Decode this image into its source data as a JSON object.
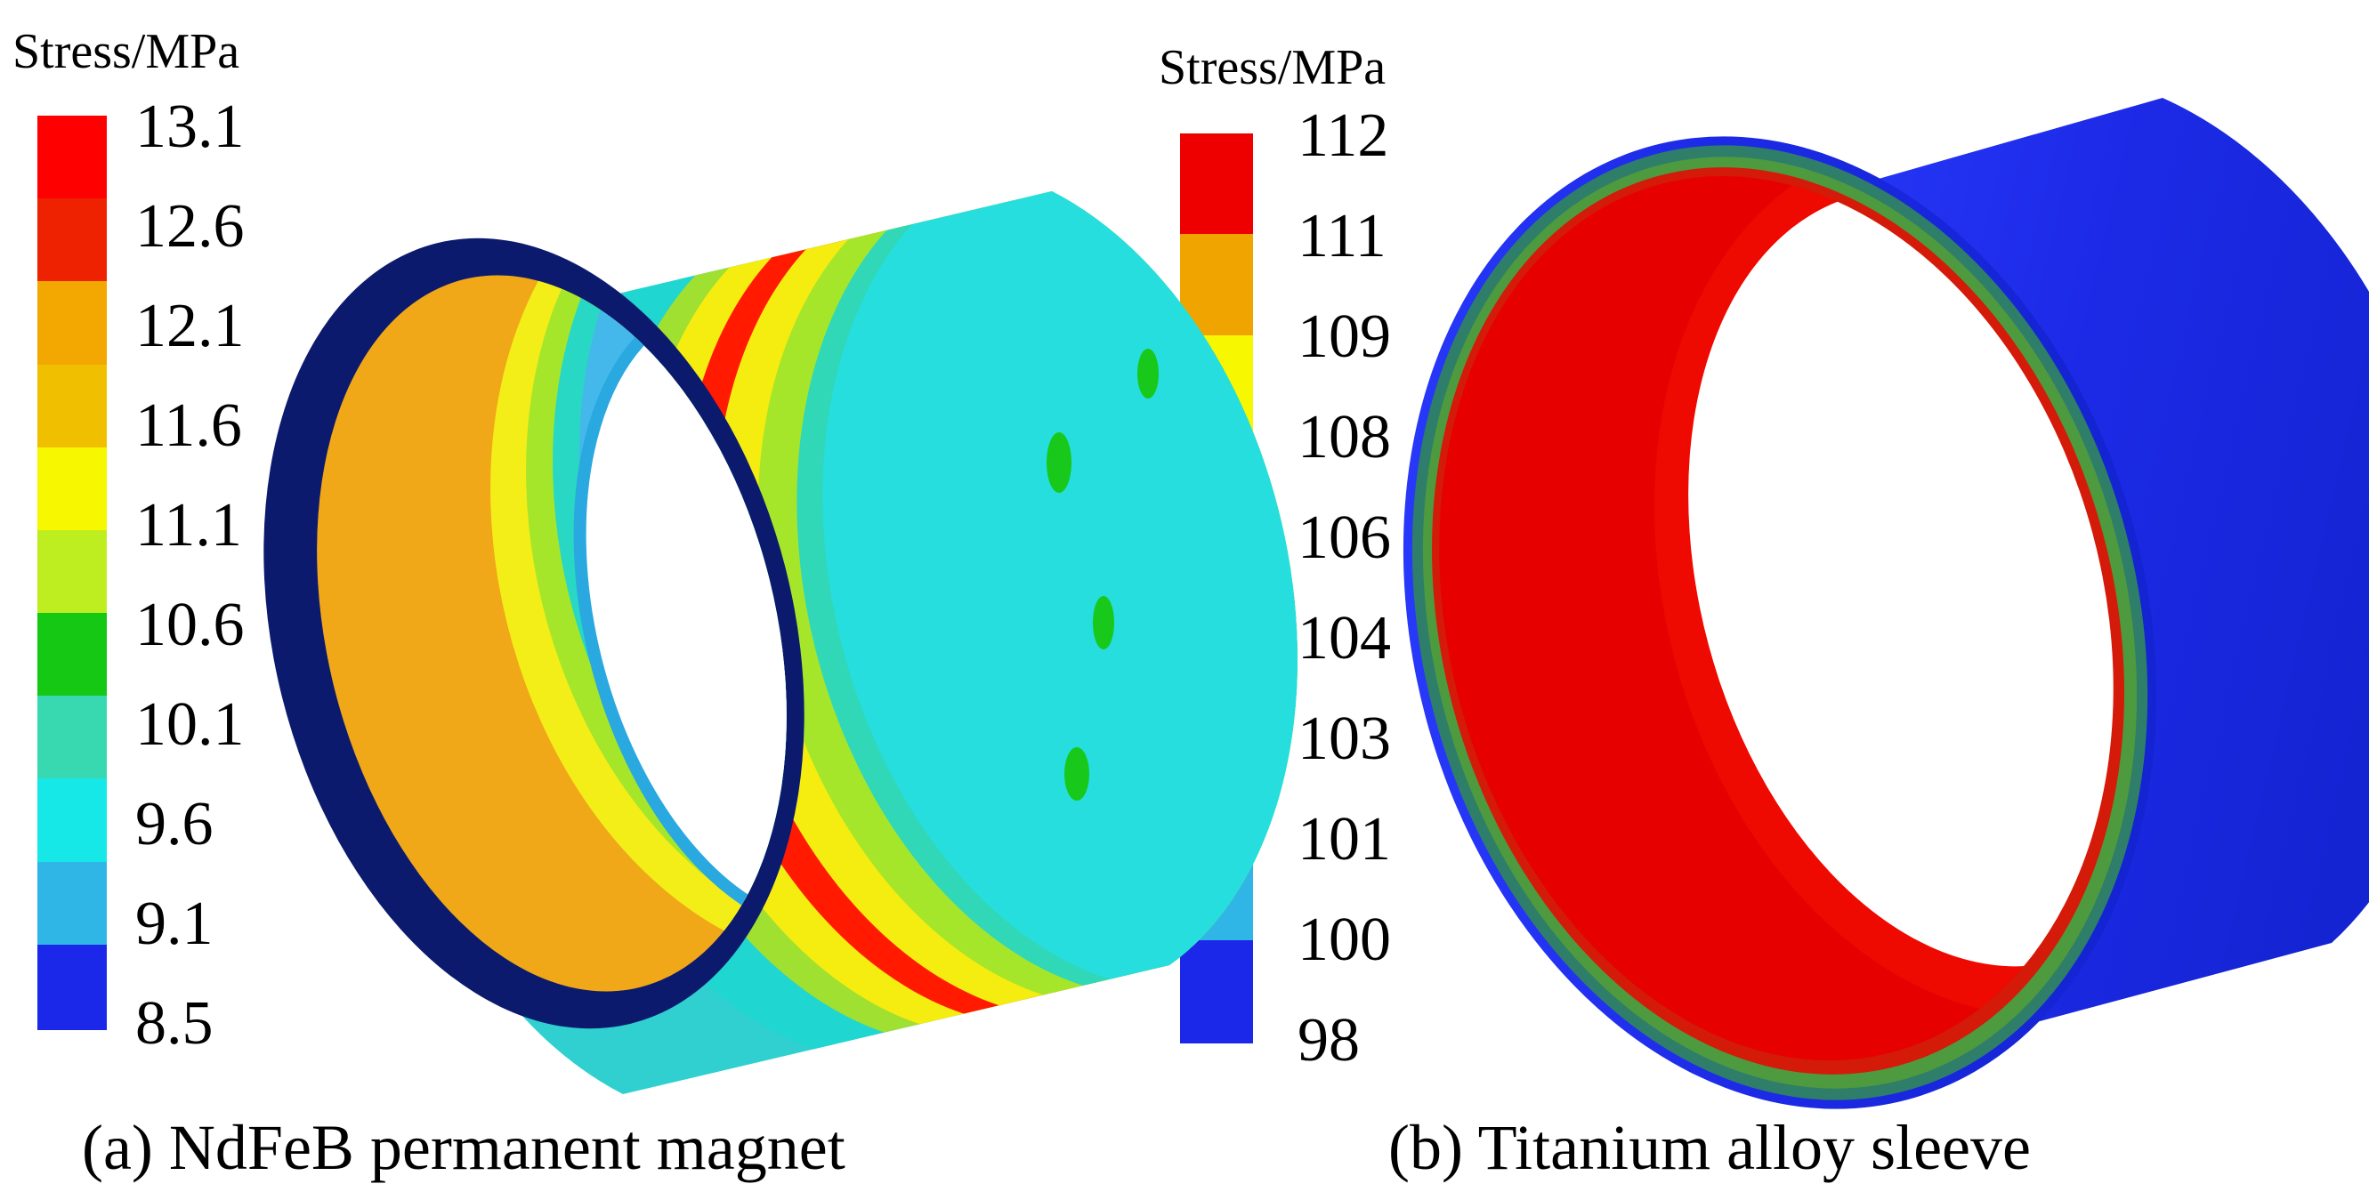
{
  "panel_a": {
    "legend_title": "Stress/MPa",
    "ticks": [
      "13.1",
      "12.6",
      "12.1",
      "11.6",
      "11.1",
      "10.6",
      "10.1",
      "9.6",
      "9.1",
      "8.5"
    ],
    "band_colors": [
      "#ff0000",
      "#ee2200",
      "#f2a800",
      "#f0c000",
      "#f7f700",
      "#bfee20",
      "#14c814",
      "#38d8b0",
      "#16e8e8",
      "#30b6e6",
      "#1b28ea"
    ],
    "caption": "(a) NdFeB permanent magnet"
  },
  "panel_b": {
    "legend_title": "Stress/MPa",
    "ticks": [
      "112",
      "111",
      "109",
      "108",
      "106",
      "104",
      "103",
      "101",
      "100",
      "98"
    ],
    "band_colors": [
      "#ee0000",
      "#f0a400",
      "#f7f700",
      "#bff020",
      "#10c810",
      "#38d8b0",
      "#16e8e8",
      "#30b6e6",
      "#1b28ea"
    ],
    "caption": "(b) Titanium alloy sleeve"
  }
}
